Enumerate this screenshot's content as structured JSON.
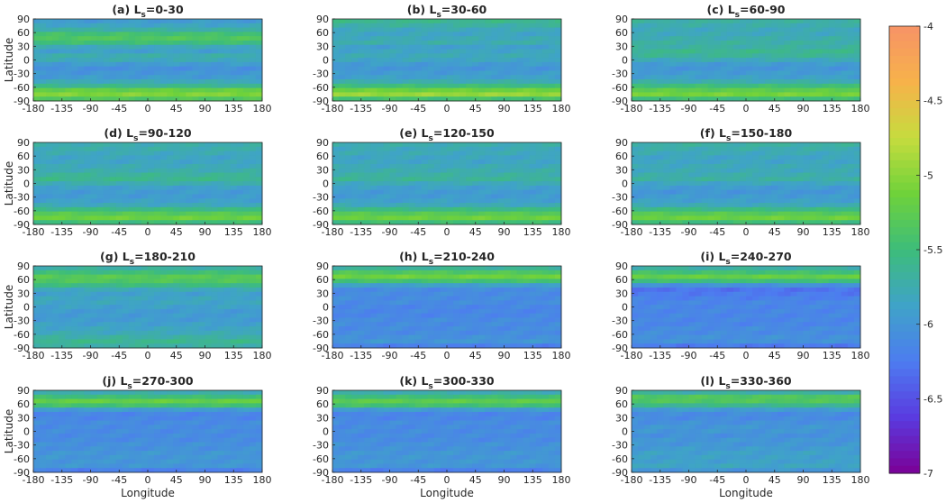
{
  "chart_data": {
    "type": "heatmap",
    "xlabel": "Longitude",
    "ylabel": "Latitude",
    "xlim": [
      -180,
      180
    ],
    "ylim": [
      -90,
      90
    ],
    "xticks": [
      -180,
      -135,
      -90,
      -45,
      0,
      45,
      90,
      135,
      180
    ],
    "yticks": [
      -90,
      -60,
      -30,
      0,
      30,
      60,
      90
    ],
    "colorbar": {
      "range": [
        -7,
        -4
      ],
      "ticks": [
        -7,
        -6.5,
        -6,
        -5.5,
        -5,
        -4.5,
        -4
      ],
      "colormap": [
        "#7b0096",
        "#5a3be0",
        "#4d7cf0",
        "#3fa3c8",
        "#3dbd7a",
        "#6fd23a",
        "#c6dc3e",
        "#f7b24a",
        "#f79367"
      ]
    },
    "panels": [
      {
        "label": "(a) ",
        "ls_prefix": "L",
        "ls_sub": "s",
        "range": "=0-30",
        "profile": [
          -5.95,
          -5.85,
          -5.7,
          -5.45,
          -5.35,
          -5.5,
          -5.8,
          -5.9,
          -5.75,
          -5.8,
          -5.95,
          -6.05,
          -6.0,
          -5.95,
          -5.8,
          -5.6,
          -5.2,
          -5.05,
          -5.35
        ]
      },
      {
        "label": "(b) ",
        "ls_prefix": "L",
        "ls_sub": "s",
        "range": "=30-60",
        "profile": [
          -5.6,
          -5.7,
          -5.8,
          -5.85,
          -5.8,
          -5.75,
          -5.9,
          -5.85,
          -5.8,
          -5.85,
          -5.95,
          -6.0,
          -5.95,
          -5.9,
          -5.75,
          -5.5,
          -5.15,
          -4.95,
          -5.45
        ]
      },
      {
        "label": "(c) ",
        "ls_prefix": "L",
        "ls_sub": "s",
        "range": "=60-90",
        "profile": [
          -5.7,
          -5.75,
          -5.8,
          -5.8,
          -5.75,
          -5.7,
          -5.7,
          -5.6,
          -5.65,
          -5.8,
          -5.95,
          -6.0,
          -5.95,
          -5.9,
          -5.75,
          -5.5,
          -5.25,
          -5.1,
          -5.5
        ]
      },
      {
        "label": "(d) ",
        "ls_prefix": "L",
        "ls_sub": "s",
        "range": "=90-120",
        "profile": [
          -5.75,
          -5.75,
          -5.8,
          -5.85,
          -5.85,
          -5.8,
          -5.75,
          -5.65,
          -5.6,
          -5.75,
          -5.9,
          -5.95,
          -5.95,
          -5.9,
          -5.8,
          -5.55,
          -5.3,
          -5.15,
          -5.5
        ]
      },
      {
        "label": "(e) ",
        "ls_prefix": "L",
        "ls_sub": "s",
        "range": "=120-150",
        "profile": [
          -5.75,
          -5.8,
          -5.8,
          -5.85,
          -5.85,
          -5.8,
          -5.75,
          -5.7,
          -5.65,
          -5.8,
          -5.9,
          -5.95,
          -5.95,
          -5.9,
          -5.8,
          -5.55,
          -5.3,
          -5.15,
          -5.5
        ]
      },
      {
        "label": "(f) ",
        "ls_prefix": "L",
        "ls_sub": "s",
        "range": "=150-180",
        "profile": [
          -5.7,
          -5.75,
          -5.8,
          -5.85,
          -5.85,
          -5.8,
          -5.8,
          -5.75,
          -5.7,
          -5.85,
          -5.95,
          -6.0,
          -5.95,
          -5.9,
          -5.8,
          -5.55,
          -5.3,
          -5.15,
          -5.5
        ]
      },
      {
        "label": "(g) ",
        "ls_prefix": "L",
        "ls_sub": "s",
        "range": "=180-210",
        "profile": [
          -5.7,
          -5.5,
          -5.3,
          -5.35,
          -5.55,
          -5.8,
          -5.9,
          -5.85,
          -5.85,
          -5.9,
          -5.95,
          -5.95,
          -5.95,
          -5.9,
          -5.85,
          -5.8,
          -5.7,
          -5.6,
          -5.7
        ]
      },
      {
        "label": "(h) ",
        "ls_prefix": "L",
        "ls_sub": "s",
        "range": "=210-240",
        "profile": [
          -5.65,
          -5.35,
          -5.15,
          -5.45,
          -5.9,
          -6.1,
          -6.1,
          -6.1,
          -6.1,
          -6.15,
          -6.15,
          -6.15,
          -6.1,
          -6.1,
          -6.1,
          -6.1,
          -6.05,
          -6.0,
          -6.2
        ]
      },
      {
        "label": "(i) ",
        "ls_prefix": "L",
        "ls_sub": "s",
        "range": "=240-270",
        "profile": [
          -5.7,
          -5.45,
          -5.2,
          -5.5,
          -6.05,
          -6.3,
          -6.25,
          -6.2,
          -6.15,
          -6.15,
          -6.15,
          -6.15,
          -6.15,
          -6.15,
          -6.1,
          -6.1,
          -6.05,
          -6.05,
          -6.25
        ]
      },
      {
        "label": "(j) ",
        "ls_prefix": "L",
        "ls_sub": "s",
        "range": "=270-300",
        "profile": [
          -5.75,
          -5.5,
          -5.2,
          -5.45,
          -5.95,
          -6.15,
          -6.15,
          -6.1,
          -6.1,
          -6.1,
          -6.1,
          -6.1,
          -6.05,
          -6.05,
          -6.0,
          -6.0,
          -6.0,
          -6.0,
          -6.2
        ]
      },
      {
        "label": "(k) ",
        "ls_prefix": "L",
        "ls_sub": "s",
        "range": "=300-330",
        "profile": [
          -5.75,
          -5.5,
          -5.25,
          -5.45,
          -5.95,
          -6.15,
          -6.15,
          -6.1,
          -6.1,
          -6.1,
          -6.1,
          -6.1,
          -6.05,
          -6.05,
          -6.0,
          -6.0,
          -6.0,
          -6.0,
          -6.2
        ]
      },
      {
        "label": "(l) ",
        "ls_prefix": "L",
        "ls_sub": "s",
        "range": "=330-360",
        "profile": [
          -5.7,
          -5.35,
          -5.35,
          -5.6,
          -5.95,
          -6.1,
          -6.1,
          -6.05,
          -6.0,
          -6.0,
          -6.05,
          -6.0,
          -6.0,
          -5.95,
          -5.9,
          -5.9,
          -5.9,
          -5.85,
          -6.0
        ]
      }
    ]
  }
}
